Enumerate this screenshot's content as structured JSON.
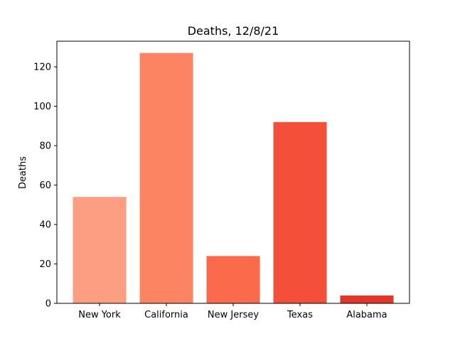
{
  "chart_data": {
    "type": "bar",
    "title": "Deaths, 12/8/21",
    "xlabel": "",
    "ylabel": "Deaths",
    "categories": [
      "New York",
      "California",
      "New Jersey",
      "Texas",
      "Alabama"
    ],
    "values": [
      54,
      127,
      24,
      92,
      4
    ],
    "colors": [
      "#fc9e81",
      "#fc8463",
      "#fb6a4a",
      "#f44f39",
      "#e33529"
    ],
    "ylim": [
      0,
      133
    ],
    "yticks": [
      0,
      20,
      40,
      60,
      80,
      100,
      120
    ],
    "ytick_labels": [
      "0",
      "20",
      "40",
      "60",
      "80",
      "100",
      "120"
    ],
    "grid": false,
    "legend": "none"
  }
}
